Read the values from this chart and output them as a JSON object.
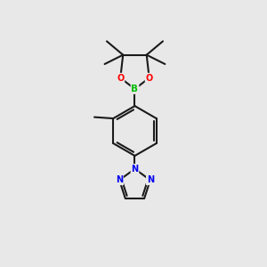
{
  "bg_color": "#e8e8e8",
  "bond_color": "#1a1a1a",
  "bond_width": 1.5,
  "atom_colors": {
    "B": "#00bb00",
    "O": "#ff0000",
    "N": "#0000ee",
    "C": "#1a1a1a"
  },
  "figsize": [
    3.0,
    3.0
  ],
  "dpi": 100
}
